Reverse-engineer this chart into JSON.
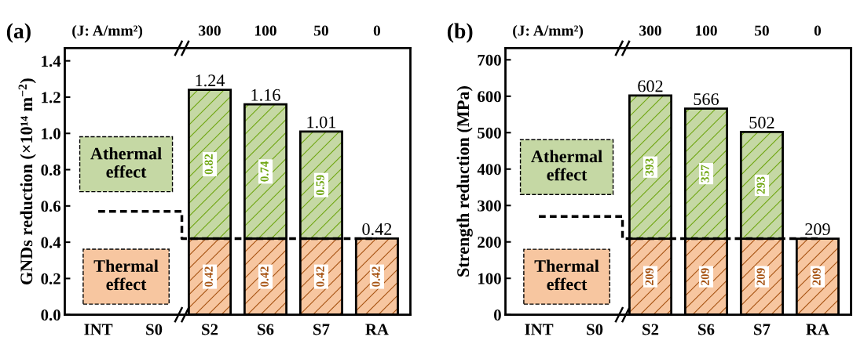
{
  "chart_data": [
    {
      "type": "bar",
      "title": "(a)",
      "ylabel": "GNDs reduction (×10¹⁴ m$^{−2}$)",
      "categories": [
        "INT",
        "S0",
        "S2",
        "S6",
        "S7",
        "RA"
      ],
      "stacked": true,
      "ylim": [
        0,
        1.47
      ],
      "yticks": [
        {
          "value": 0,
          "label": "0.0"
        },
        0.2,
        0.4,
        0.6,
        0.8,
        {
          "value": 1,
          "label": "1.0"
        },
        1.2,
        1.4
      ],
      "grid": false,
      "legend": "left",
      "data_labels": true,
      "series": [
        {
          "name": "Thermal\neffect",
          "color": "#f7c6a0",
          "values": [
            null,
            null,
            0.42,
            0.42,
            0.42,
            0.42
          ],
          "value_labels": [
            null,
            null,
            "0.42",
            "0.42",
            "0.42",
            "0.42"
          ]
        },
        {
          "name": "Athermal\neffect",
          "color": "#c5d8a4",
          "values": [
            null,
            null,
            0.82,
            0.74,
            0.59,
            null
          ],
          "value_labels": [
            null,
            null,
            "0.82",
            "0.74",
            "0.59",
            null
          ]
        },
        {
          "type": "step",
          "color": "#000000",
          "line_style": "dashed",
          "values": [
            0.57,
            0.57,
            0.42,
            0.42,
            0.42,
            0.42
          ],
          "value_labels": [
            null,
            null,
            null,
            null,
            null,
            null
          ]
        }
      ],
      "totals": [
        null,
        null,
        "1.24",
        "1.16",
        "1.01",
        "0.42"
      ],
      "annotations": [
        "(J: A/mm²)",
        "300",
        "100",
        "50",
        "0"
      ]
    },
    {
      "type": "bar",
      "title": "(b)",
      "ylabel": "Strength reduction (MPa)",
      "categories": [
        "INT",
        "S0",
        "S2",
        "S6",
        "S7",
        "RA"
      ],
      "stacked": true,
      "ylim": [
        0,
        732
      ],
      "yticks": [
        0,
        100,
        200,
        300,
        400,
        500,
        600,
        700
      ],
      "grid": false,
      "legend": "left",
      "data_labels": true,
      "series": [
        {
          "name": "Thermal\neffect",
          "color": "#f7c6a0",
          "values": [
            null,
            null,
            209,
            209,
            209,
            209
          ],
          "value_labels": [
            null,
            null,
            "209",
            "209",
            "209",
            "209"
          ]
        },
        {
          "name": "Athermal\neffect",
          "color": "#c5d8a4",
          "values": [
            null,
            null,
            393,
            357,
            293,
            null
          ],
          "value_labels": [
            null,
            null,
            "393",
            "357",
            "293",
            null
          ]
        },
        {
          "type": "step",
          "color": "#000000",
          "line_style": "dashed",
          "values": [
            270,
            270,
            209,
            209,
            209,
            209
          ],
          "value_labels": [
            null,
            null,
            null,
            null,
            null,
            null
          ]
        }
      ],
      "totals": [
        null,
        null,
        "602",
        "566",
        "502",
        "209"
      ],
      "annotations": [
        "(J: A/mm²)",
        "300",
        "100",
        "50",
        "0"
      ]
    }
  ]
}
